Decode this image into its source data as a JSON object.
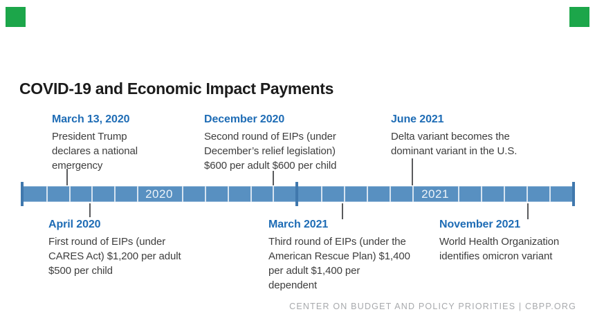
{
  "brand": {
    "green": "#1ca64a",
    "squares": [
      "top-left",
      "top-right"
    ]
  },
  "title": "COVID-19 and Economic Impact Payments",
  "timeline": {
    "bar_color": "#5890c1",
    "cap_color": "#4078ad",
    "date_color": "#1e6cb5",
    "year_labels": [
      "2020",
      "2021"
    ],
    "months_per_year": 12
  },
  "events": {
    "top": [
      {
        "date": "March 13, 2020",
        "lines": [
          "President Trump",
          "declares a national",
          "emergency"
        ]
      },
      {
        "date": "December 2020",
        "lines": [
          "Second round of EIPs (under",
          "December’s relief legislation)",
          "$600 per adult $600 per child"
        ]
      },
      {
        "date": "June 2021",
        "lines": [
          "Delta variant becomes the",
          "dominant variant in the U.S."
        ]
      }
    ],
    "bottom": [
      {
        "date": "April 2020",
        "lines": [
          "First round of EIPs (under",
          "CARES Act) $1,200 per adult",
          "$500 per child"
        ]
      },
      {
        "date": "March 2021",
        "lines": [
          "Third round of EIPs (under the",
          "American Rescue Plan) $1,400",
          "per adult $1,400 per",
          "dependent"
        ]
      },
      {
        "date": "November 2021",
        "lines": [
          "World Health Organization",
          "identifies omicron variant"
        ]
      }
    ]
  },
  "footer": {
    "credit": "CENTER ON BUDGET AND POLICY PRIORITIES | CBPP.ORG"
  }
}
